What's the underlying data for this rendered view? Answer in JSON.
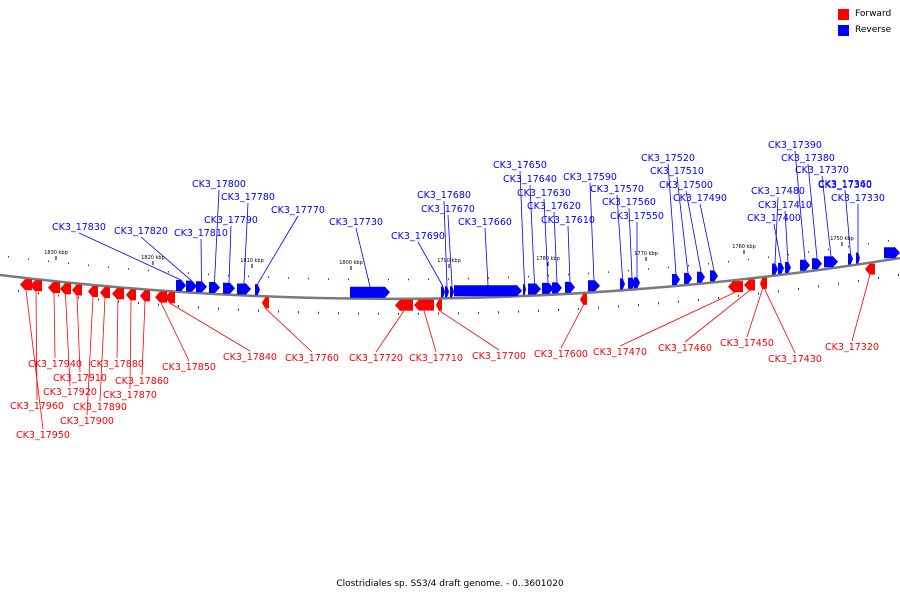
{
  "caption": "Clostridiales sp. SS3/4 draft genome. - 0..3601020",
  "legend": [
    {
      "label": "Forward",
      "color": "#ff0000"
    },
    {
      "label": "Reverse",
      "color": "#0000ff"
    }
  ],
  "colors": {
    "forward": "#ff0000",
    "reverse": "#0000ff",
    "backbone": "#7a7a7a"
  },
  "ruler_labels": [
    "1830 kbp",
    "1820 kbp",
    "1810 kbp",
    "1800 kbp",
    "1790 kbp",
    "1780 kbp",
    "1770 kbp",
    "1760 kbp",
    "1750 kbp"
  ],
  "forward_genes": [
    "CK3_17940",
    "CK3_17910",
    "CK3_17920",
    "CK3_17960",
    "CK3_17950",
    "CK3_17880",
    "CK3_17890",
    "CK3_17900",
    "CK3_17870",
    "CK3_17860",
    "CK3_17850",
    "CK3_17840",
    "CK3_17760",
    "CK3_17720",
    "CK3_17710",
    "CK3_17700",
    "CK3_17600",
    "CK3_17470",
    "CK3_17460",
    "CK3_17450",
    "CK3_17430",
    "CK3_17320"
  ],
  "reverse_genes": [
    "CK3_17830",
    "CK3_17820",
    "CK3_17810",
    "CK3_17800",
    "CK3_17790",
    "CK3_17780",
    "CK3_17770",
    "CK3_17730",
    "CK3_17690",
    "CK3_17680",
    "CK3_17670",
    "CK3_17660",
    "CK3_17650",
    "CK3_17640",
    "CK3_17630",
    "CK3_17620",
    "CK3_17610",
    "CK3_17590",
    "CK3_17570",
    "CK3_17560",
    "CK3_17550",
    "CK3_17520",
    "CK3_17510",
    "CK3_17500",
    "CK3_17490",
    "CK3_17480",
    "CK3_17400",
    "CK3_17410",
    "CK3_17390",
    "CK3_17380",
    "CK3_17370",
    "CK3_17360",
    "CK3_17340",
    "CK3_17330"
  ]
}
